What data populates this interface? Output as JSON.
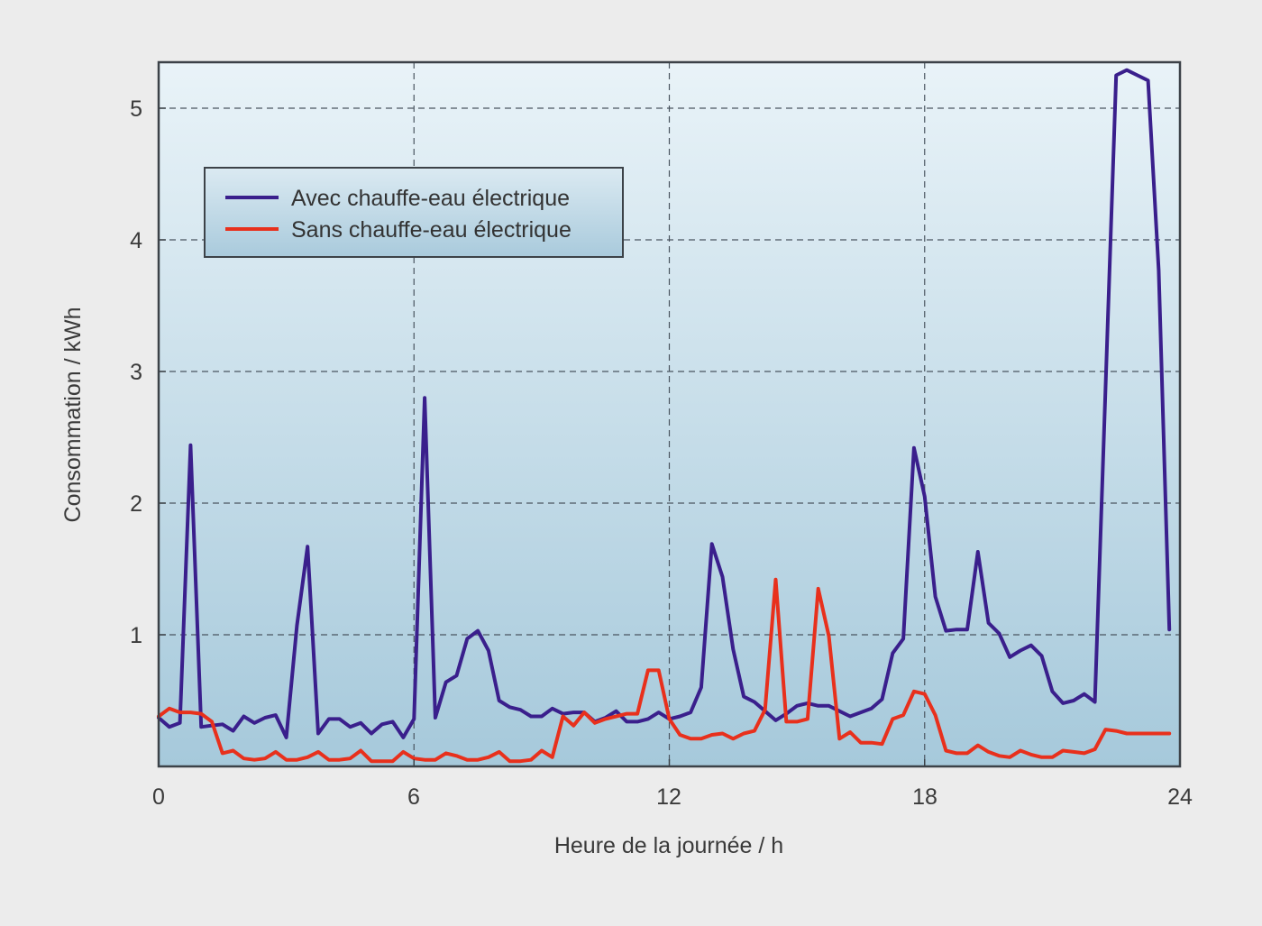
{
  "chart_data": {
    "type": "line",
    "title": "",
    "xlabel": "Heure de la journée / h",
    "ylabel": "Consommation / kWh",
    "xlim": [
      0,
      24
    ],
    "ylim": [
      0,
      5.35
    ],
    "xticks": [
      0,
      6,
      12,
      18,
      24
    ],
    "yticks": [
      1,
      2,
      3,
      4,
      5
    ],
    "grid": true,
    "legend_position": "upper-left",
    "x_step_hours": 0.25,
    "series": [
      {
        "name": "Avec chauffe-eau électrique",
        "color": "#3a1f8c",
        "values": [
          0.37,
          0.3,
          0.33,
          2.44,
          0.3,
          0.31,
          0.32,
          0.27,
          0.38,
          0.33,
          0.37,
          0.39,
          0.22,
          1.07,
          1.67,
          0.25,
          0.36,
          0.36,
          0.3,
          0.33,
          0.25,
          0.32,
          0.34,
          0.22,
          0.36,
          2.8,
          0.37,
          0.64,
          0.69,
          0.97,
          1.03,
          0.88,
          0.5,
          0.45,
          0.43,
          0.38,
          0.38,
          0.44,
          0.4,
          0.41,
          0.41,
          0.34,
          0.37,
          0.42,
          0.34,
          0.34,
          0.36,
          0.41,
          0.36,
          0.38,
          0.41,
          0.6,
          1.69,
          1.44,
          0.89,
          0.53,
          0.49,
          0.42,
          0.35,
          0.4,
          0.46,
          0.48,
          0.46,
          0.46,
          0.42,
          0.38,
          0.41,
          0.44,
          0.51,
          0.86,
          0.97,
          2.42,
          2.05,
          1.29,
          1.03,
          1.04,
          1.04,
          1.63,
          1.09,
          1.01,
          0.83,
          0.88,
          0.92,
          0.84,
          0.57,
          0.48,
          0.5,
          0.55,
          0.49,
          2.87,
          5.25,
          5.29,
          5.25,
          5.21,
          3.77,
          1.04
        ]
      },
      {
        "name": "Sans chauffe-eau électrique",
        "color": "#e8301c",
        "values": [
          0.38,
          0.44,
          0.41,
          0.41,
          0.4,
          0.34,
          0.1,
          0.12,
          0.06,
          0.05,
          0.06,
          0.11,
          0.05,
          0.05,
          0.07,
          0.11,
          0.05,
          0.05,
          0.06,
          0.12,
          0.04,
          0.04,
          0.04,
          0.11,
          0.06,
          0.05,
          0.05,
          0.1,
          0.08,
          0.05,
          0.05,
          0.07,
          0.11,
          0.04,
          0.04,
          0.05,
          0.12,
          0.07,
          0.38,
          0.31,
          0.41,
          0.33,
          0.36,
          0.38,
          0.4,
          0.4,
          0.73,
          0.73,
          0.36,
          0.24,
          0.21,
          0.21,
          0.24,
          0.25,
          0.21,
          0.25,
          0.27,
          0.43,
          1.42,
          0.34,
          0.34,
          0.36,
          1.35,
          0.99,
          0.21,
          0.26,
          0.18,
          0.18,
          0.17,
          0.36,
          0.39,
          0.57,
          0.55,
          0.39,
          0.12,
          0.1,
          0.1,
          0.16,
          0.11,
          0.08,
          0.07,
          0.12,
          0.09,
          0.07,
          0.07,
          0.12,
          0.11,
          0.1,
          0.13,
          0.28,
          0.27,
          0.25,
          0.25,
          0.25,
          0.25,
          0.25
        ]
      }
    ]
  },
  "labels": {
    "xlabel": "Heure de la journée / h",
    "ylabel": "Consommation / kWh",
    "xticks": [
      "0",
      "6",
      "12",
      "18",
      "24"
    ],
    "yticks": [
      "1",
      "2",
      "3",
      "4",
      "5"
    ]
  },
  "legend": {
    "items": [
      {
        "label": "Avec chauffe-eau électrique",
        "color": "#3a1f8c"
      },
      {
        "label": "Sans chauffe-eau électrique",
        "color": "#e8301c"
      }
    ]
  },
  "colors": {
    "page_background": "#ececec",
    "plot_top": "#e9f3f8",
    "plot_bottom": "#a6c9db",
    "frame": "#3c4248",
    "grid": "#4a5560"
  }
}
